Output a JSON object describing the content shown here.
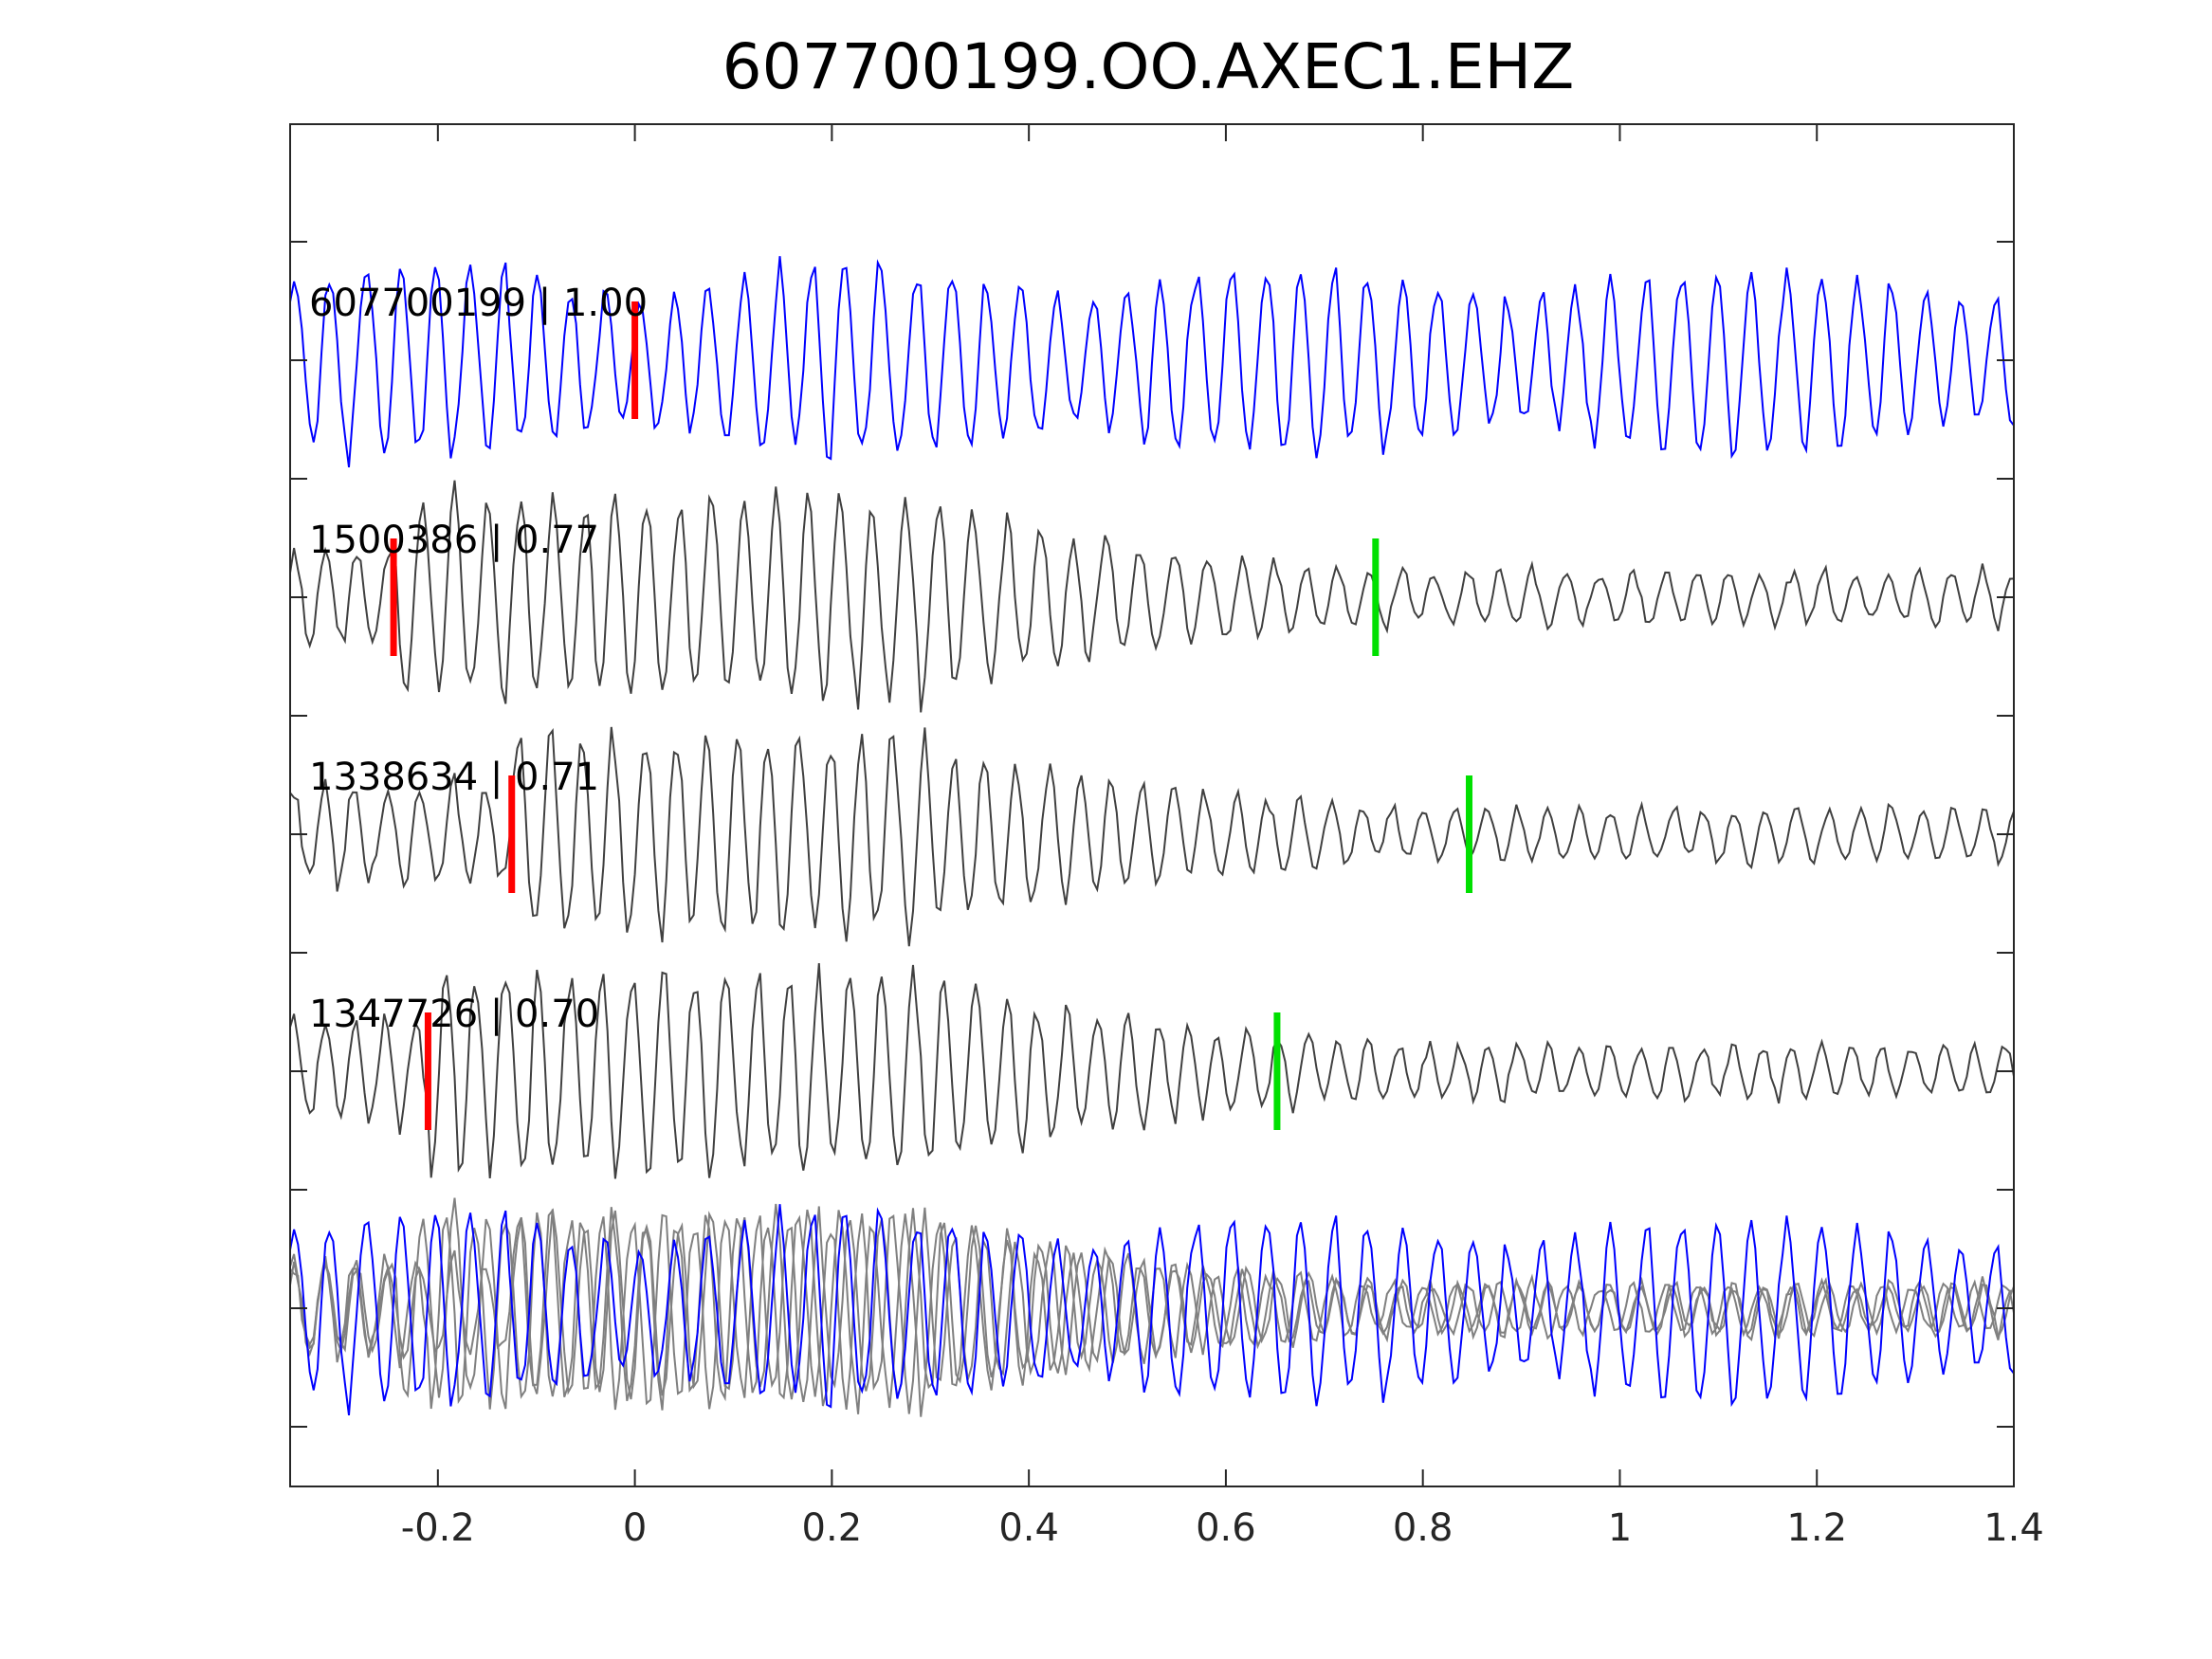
{
  "chart_data": {
    "type": "line",
    "title": "607700199.OO.AXEC1.EHZ",
    "xlabel": "",
    "ylabel": "",
    "xlim": [
      -0.35,
      1.4
    ],
    "x_ticks": [
      -0.2,
      0,
      0.2,
      0.4,
      0.6,
      0.8,
      1,
      1.2,
      1.4
    ],
    "x_tick_labels": [
      "-0.2",
      "0",
      "0.2",
      "0.4",
      "0.6",
      "0.8",
      "1",
      "1.2",
      "1.4"
    ],
    "y_tick_count": 12,
    "grid": false,
    "legend": "none",
    "colors": {
      "reference": "#0000ff",
      "match": "#404040",
      "overlay_match": "#808080",
      "p_pick": "#ff0000",
      "s_pick": "#00e000"
    },
    "series": [
      {
        "name": "607700199 | 1.00",
        "label": "607700199 | 1.00",
        "kind": "reference",
        "color": "#0000ff",
        "p_pick": 0.0,
        "s_pick": null,
        "dominant_period_s": 0.035,
        "amplitude_profile": "uniform"
      },
      {
        "name": "1500386 | 0.77",
        "label": "1500386 | 0.77",
        "kind": "match",
        "color": "#404040",
        "p_pick": -0.245,
        "s_pick": 0.752,
        "dominant_period_s": 0.033,
        "amplitude_profile": "peak-early"
      },
      {
        "name": "1338634 | 0.71",
        "label": "1338634 | 0.71",
        "kind": "match",
        "color": "#404040",
        "p_pick": -0.125,
        "s_pick": 0.847,
        "dominant_period_s": 0.032,
        "amplitude_profile": "peak-early"
      },
      {
        "name": "1347726 | 0.70",
        "label": "1347726 | 0.70",
        "kind": "match",
        "color": "#404040",
        "p_pick": -0.21,
        "s_pick": 0.652,
        "dominant_period_s": 0.031,
        "amplitude_profile": "peak-early"
      }
    ],
    "overlay": {
      "description_label": "",
      "includes": [
        "607700199 | 1.00",
        "1500386 | 0.77",
        "1338634 | 0.71",
        "1347726 | 0.70"
      ]
    }
  }
}
